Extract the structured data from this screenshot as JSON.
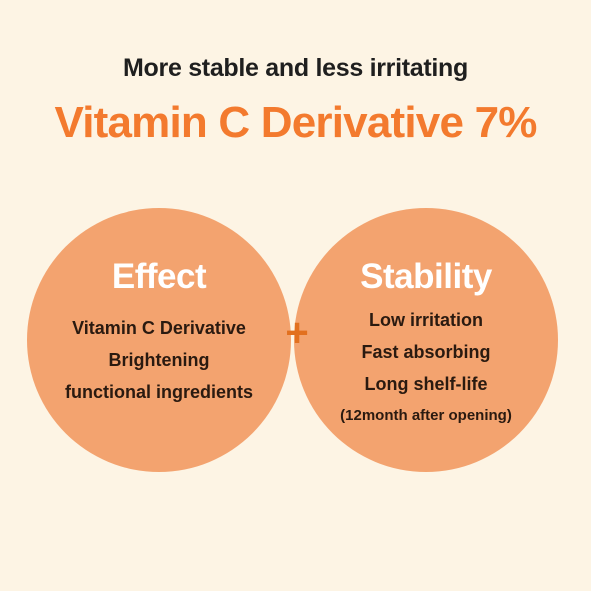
{
  "subtitle": "More stable and less irritating",
  "title": "Vitamin C Derivative 7%",
  "left_circle": {
    "heading": "Effect",
    "items": [
      "Vitamin C Derivative",
      "Brightening",
      "functional ingredients"
    ]
  },
  "right_circle": {
    "heading": "Stability",
    "items": [
      "Low irritation",
      "Fast absorbing",
      "Long shelf-life",
      "(12month after opening)"
    ]
  },
  "plus_symbol": "+",
  "colors": {
    "background": "#fdf4e4",
    "title": "#f37a2e",
    "circle": "#f09155",
    "overlap": "#e96d25",
    "plus": "#e2701f"
  }
}
